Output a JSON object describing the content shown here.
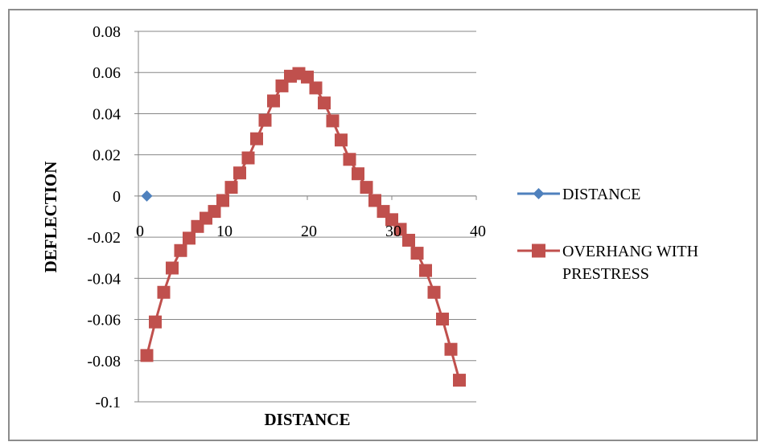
{
  "chart_data": {
    "type": "scatter",
    "title": "",
    "xlabel": "DISTANCE",
    "ylabel": "DEFLECTION",
    "xlim": [
      0,
      40
    ],
    "ylim": [
      -0.1,
      0.08
    ],
    "x_ticks": [
      0,
      10,
      20,
      30,
      40
    ],
    "y_ticks": [
      0.08,
      0.06,
      0.04,
      0.02,
      0,
      -0.02,
      -0.04,
      -0.06,
      -0.08,
      -0.1
    ],
    "x_tick_labels": [
      "0",
      "10",
      "20",
      "30",
      "40"
    ],
    "y_tick_labels": [
      "0.08",
      "0.06",
      "0.04",
      "0.02",
      "0",
      "-0.02",
      "-0.04",
      "-0.06",
      "-0.08",
      "-0.1"
    ],
    "grid": "horizontal",
    "legend_position": "right",
    "series": [
      {
        "name": "DISTANCE",
        "color": "#4f81bd",
        "marker": "diamond",
        "points": [
          [
            1,
            0
          ]
        ]
      },
      {
        "name": "OVERHANG WITH PRESTRESS",
        "color": "#c0504d",
        "marker": "square",
        "points": [
          [
            1,
            -0.0775
          ],
          [
            2,
            -0.0612
          ],
          [
            3,
            -0.0468
          ],
          [
            4,
            -0.035
          ],
          [
            5,
            -0.0265
          ],
          [
            6,
            -0.0205
          ],
          [
            7,
            -0.0148
          ],
          [
            8,
            -0.0108
          ],
          [
            9,
            -0.0075
          ],
          [
            10,
            -0.0022
          ],
          [
            11,
            0.0042
          ],
          [
            12,
            0.0112
          ],
          [
            13,
            0.0185
          ],
          [
            14,
            0.0278
          ],
          [
            15,
            0.0368
          ],
          [
            16,
            0.0462
          ],
          [
            17,
            0.0535
          ],
          [
            18,
            0.0582
          ],
          [
            19,
            0.0595
          ],
          [
            20,
            0.0578
          ],
          [
            21,
            0.0525
          ],
          [
            22,
            0.0452
          ],
          [
            23,
            0.0365
          ],
          [
            24,
            0.0272
          ],
          [
            25,
            0.0178
          ],
          [
            26,
            0.0108
          ],
          [
            27,
            0.0042
          ],
          [
            28,
            -0.0022
          ],
          [
            29,
            -0.0075
          ],
          [
            30,
            -0.0115
          ],
          [
            31,
            -0.0162
          ],
          [
            32,
            -0.0215
          ],
          [
            33,
            -0.0278
          ],
          [
            34,
            -0.0362
          ],
          [
            35,
            -0.0468
          ],
          [
            36,
            -0.0598
          ],
          [
            37,
            -0.0745
          ],
          [
            38,
            -0.0895
          ]
        ]
      }
    ]
  }
}
